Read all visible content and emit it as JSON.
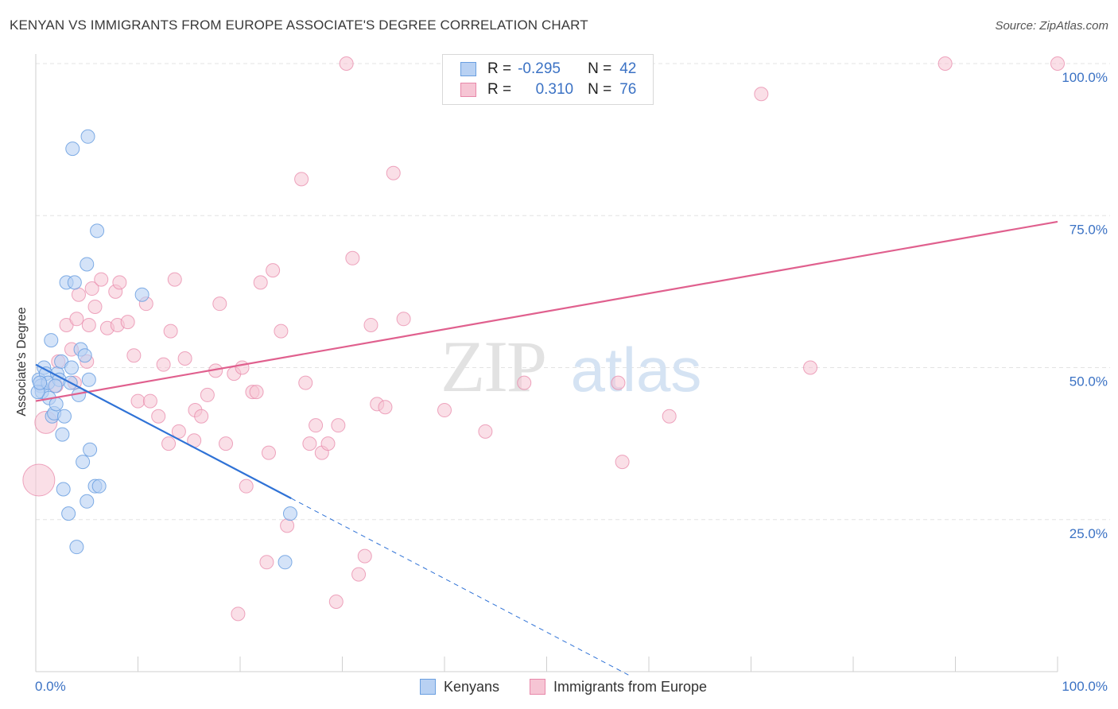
{
  "title": "KENYAN VS IMMIGRANTS FROM EUROPE ASSOCIATE'S DEGREE CORRELATION CHART",
  "source": "Source: ZipAtlas.com",
  "watermark": {
    "zip": "ZIP",
    "atlas": "atlas"
  },
  "colors": {
    "blue": "#6a9fe0",
    "blue_fill": "#b8d1f3",
    "blue_line": "#2f72d6",
    "pink": "#e888aa",
    "pink_fill": "#f6c5d4",
    "pink_line": "#e0608e",
    "tick_text": "#3b72c4"
  },
  "legend": {
    "rows": [
      {
        "r_label": "R =",
        "r_value": "-0.295",
        "n_label": "N =",
        "n_value": "42"
      },
      {
        "r_label": "R =",
        "r_value": "0.310",
        "n_label": "N =",
        "n_value": "76"
      }
    ]
  },
  "bottom_legend": {
    "kenyans": "Kenyans",
    "europe": "Immigrants from Europe"
  },
  "chart_data": {
    "type": "scatter",
    "title": "KENYAN VS IMMIGRANTS FROM EUROPE ASSOCIATE'S DEGREE CORRELATION CHART",
    "xlabel": "",
    "ylabel": "Associate's Degree",
    "xlim": [
      0,
      100
    ],
    "ylim": [
      0,
      100
    ],
    "x_tick_labels": {
      "left": "0.0%",
      "right": "100.0%"
    },
    "y_ticks": [
      {
        "value": 25,
        "label": "25.0%"
      },
      {
        "value": 50,
        "label": "50.0%"
      },
      {
        "value": 75,
        "label": "75.0%"
      },
      {
        "value": 100,
        "label": "100.0%"
      }
    ],
    "series": [
      {
        "name": "Kenyans",
        "color": "#6a9fe0",
        "r": -0.295,
        "n": 42,
        "trend": {
          "x0": 0,
          "y0": 50.5,
          "x1": 25,
          "y1": 28.5,
          "dash_to_x": 58
        },
        "points": [
          [
            0.3,
            48
          ],
          [
            0.5,
            47
          ],
          [
            0.6,
            46
          ],
          [
            0.8,
            50
          ],
          [
            1,
            49
          ],
          [
            1.2,
            47.5
          ],
          [
            1.3,
            45
          ],
          [
            1.5,
            54.5
          ],
          [
            1.6,
            42
          ],
          [
            1.8,
            42.5
          ],
          [
            2,
            44
          ],
          [
            2.1,
            49
          ],
          [
            2.3,
            48
          ],
          [
            2.5,
            51
          ],
          [
            2.6,
            39
          ],
          [
            2.8,
            42
          ],
          [
            3,
            64
          ],
          [
            3.2,
            26
          ],
          [
            2.7,
            30
          ],
          [
            3.4,
            47.5
          ],
          [
            3.5,
            50
          ],
          [
            3.6,
            86
          ],
          [
            3.8,
            64
          ],
          [
            4,
            20.5
          ],
          [
            4.2,
            45.5
          ],
          [
            4.4,
            53
          ],
          [
            4.6,
            34.5
          ],
          [
            4.8,
            52
          ],
          [
            5,
            28
          ],
          [
            5,
            67
          ],
          [
            5.2,
            48
          ],
          [
            5.1,
            88
          ],
          [
            5.3,
            36.5
          ],
          [
            5.8,
            30.5
          ],
          [
            6,
            72.5
          ],
          [
            6.2,
            30.5
          ],
          [
            10.4,
            62
          ],
          [
            24.9,
            26
          ],
          [
            24.4,
            18
          ],
          [
            0.2,
            46
          ],
          [
            0.4,
            47.5
          ],
          [
            1.9,
            47
          ]
        ]
      },
      {
        "name": "Immigrants from Europe",
        "color": "#e888aa",
        "r": 0.31,
        "n": 76,
        "trend": {
          "x0": 0,
          "y0": 44.5,
          "x1": 100,
          "y1": 74
        },
        "points": [
          [
            0.3,
            31.5
          ],
          [
            1,
            41
          ],
          [
            2,
            47
          ],
          [
            2.2,
            51
          ],
          [
            3,
            57
          ],
          [
            3.5,
            53
          ],
          [
            3.8,
            47.5
          ],
          [
            4,
            58
          ],
          [
            4.2,
            62
          ],
          [
            5,
            51
          ],
          [
            5.2,
            57
          ],
          [
            5.5,
            63
          ],
          [
            5.8,
            60
          ],
          [
            6.4,
            64.5
          ],
          [
            7,
            56.5
          ],
          [
            7.8,
            62.5
          ],
          [
            8,
            57
          ],
          [
            8.2,
            64
          ],
          [
            9,
            57.5
          ],
          [
            9.6,
            52
          ],
          [
            10,
            44.5
          ],
          [
            10.8,
            60.5
          ],
          [
            11.2,
            44.5
          ],
          [
            12,
            42
          ],
          [
            12.5,
            50.5
          ],
          [
            13,
            37.5
          ],
          [
            13.2,
            56
          ],
          [
            13.6,
            64.5
          ],
          [
            14,
            39.5
          ],
          [
            14.6,
            51.5
          ],
          [
            15.5,
            38
          ],
          [
            15.6,
            43
          ],
          [
            16.2,
            42
          ],
          [
            16.8,
            45.5
          ],
          [
            17.6,
            49.5
          ],
          [
            18,
            60.5
          ],
          [
            18.6,
            37.5
          ],
          [
            19.4,
            49
          ],
          [
            19.8,
            9.5
          ],
          [
            20.2,
            50
          ],
          [
            20.6,
            30.5
          ],
          [
            21.2,
            46
          ],
          [
            21.6,
            46
          ],
          [
            22,
            64
          ],
          [
            22.6,
            18
          ],
          [
            22.8,
            36
          ],
          [
            23.2,
            66
          ],
          [
            24,
            56
          ],
          [
            24.6,
            24
          ],
          [
            26,
            81
          ],
          [
            26.4,
            47.5
          ],
          [
            26.8,
            37.5
          ],
          [
            27.4,
            40.5
          ],
          [
            28,
            36
          ],
          [
            28.6,
            37.5
          ],
          [
            29.4,
            11.5
          ],
          [
            29.6,
            40.5
          ],
          [
            30.4,
            100
          ],
          [
            31,
            68
          ],
          [
            31.6,
            16
          ],
          [
            32.2,
            19
          ],
          [
            32.8,
            57
          ],
          [
            33.4,
            44
          ],
          [
            34.2,
            43.5
          ],
          [
            35,
            82
          ],
          [
            36,
            58
          ],
          [
            40,
            43
          ],
          [
            44,
            39.5
          ],
          [
            47.8,
            47.5
          ],
          [
            57,
            47.5
          ],
          [
            57.4,
            34.5
          ],
          [
            71,
            95
          ],
          [
            75.8,
            50
          ],
          [
            89,
            100
          ],
          [
            100,
            100
          ],
          [
            62,
            42
          ]
        ]
      }
    ]
  }
}
